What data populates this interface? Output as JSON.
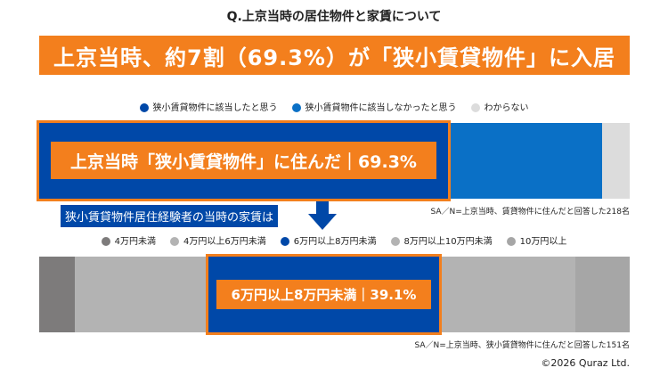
{
  "title": "Q.上京当時の居住物件と家賃について",
  "banner": "上京当時、約7割（69.3%）が「狭小賃貸物件」に入居",
  "subheading": "狭小賃貸物件居住経験者の当時の家賃は",
  "copyright": "©2026 Quraz Ltd.",
  "chart_data": [
    {
      "type": "bar",
      "orientation": "horizontal-stacked",
      "unit": "%",
      "series": [
        {
          "name": "狭小賃貸物件に該当したと思う",
          "value": 69.3,
          "color": "#0048a8"
        },
        {
          "name": "狭小賃貸物件に該当しなかったと思う",
          "value": 26.1,
          "color": "#0a70c6"
        },
        {
          "name": "わからない",
          "value": 4.6,
          "color": "#dcdcdc"
        }
      ],
      "highlight_label": "上京当時「狭小賃貸物件」に住んだ｜69.3%",
      "note": "SA／N=上京当時、賃貸物件に住んだと回答した218名"
    },
    {
      "type": "bar",
      "orientation": "horizontal-stacked",
      "unit": "%",
      "series": [
        {
          "name": "4万円未満",
          "value": 6.0,
          "color": "#7d7b7b"
        },
        {
          "name": "4万円以上6万円未満",
          "value": 22.6,
          "color": "#b3b3b3"
        },
        {
          "name": "6万円以上8万円未満",
          "value": 39.1,
          "color": "#0048a8"
        },
        {
          "name": "8万円以上10万円未満",
          "value": 23.1,
          "color": "#b3b3b3"
        },
        {
          "name": "10万円以上",
          "value": 9.2,
          "color": "#a6a6a6"
        }
      ],
      "highlight_label": "6万円以上8万円未満｜39.1%",
      "note": "SA／N=上京当時、狭小賃貸物件に住んだと回答した151名"
    }
  ],
  "accent": "#f37f1d"
}
